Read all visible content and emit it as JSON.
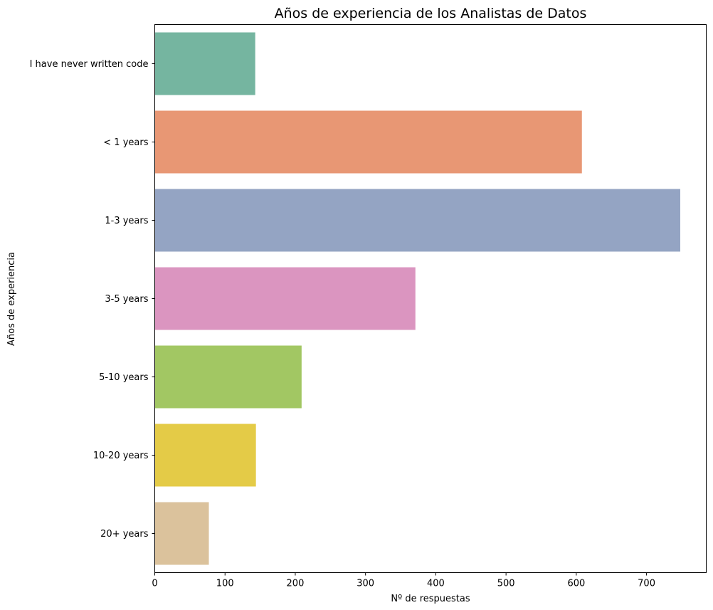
{
  "chart_data": {
    "type": "bar",
    "orientation": "horizontal",
    "title": "Años de experiencia de los Analistas de Datos",
    "xlabel": "Nº de respuestas",
    "ylabel": "Años de experiencia",
    "categories": [
      "I have never written code",
      "< 1 years",
      "1-3 years",
      "3-5 years",
      "5-10 years",
      "10-20 years",
      "20+ years"
    ],
    "values": [
      143,
      608,
      748,
      371,
      209,
      144,
      77
    ],
    "colors": [
      "#75b5a0",
      "#e89774",
      "#94a4c3",
      "#db95c0",
      "#a2c763",
      "#e4cb47",
      "#dbc29c"
    ],
    "xlim": [
      0,
      785
    ],
    "xticks": [
      0,
      100,
      200,
      300,
      400,
      500,
      600,
      700
    ],
    "grid": false,
    "legend": "none"
  }
}
